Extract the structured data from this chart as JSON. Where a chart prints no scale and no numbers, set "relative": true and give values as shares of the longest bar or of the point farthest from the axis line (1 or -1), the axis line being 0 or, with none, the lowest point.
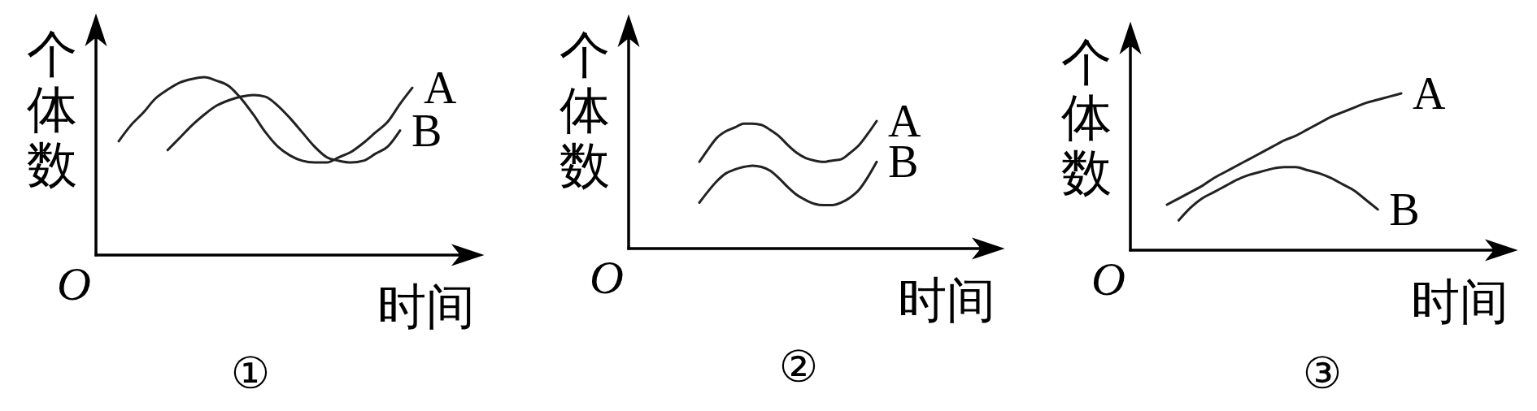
{
  "chart_data": [
    {
      "type": "line",
      "relative": true,
      "title": "①",
      "xlabel": "时间",
      "ylabel": "个体数",
      "annotations": [
        "O"
      ],
      "categories": [
        null,
        null,
        null,
        null,
        null,
        null,
        null,
        null,
        null,
        null,
        null,
        null,
        null,
        null,
        null,
        null,
        null,
        null,
        null,
        null,
        null,
        null,
        null,
        null,
        null
      ],
      "series": [
        {
          "name": "A",
          "color": "#222222",
          "values": [
            0.64,
            0.73,
            0.8,
            0.88,
            0.93,
            0.97,
            0.99,
            1.0,
            0.98,
            0.95,
            0.88,
            0.79,
            0.69,
            0.61,
            0.56,
            0.53,
            0.52,
            0.52,
            0.55,
            0.58,
            0.63,
            0.69,
            0.75,
            0.85,
            0.94
          ]
        },
        {
          "name": "B",
          "color": "#222222",
          "values": [
            null,
            null,
            null,
            null,
            0.59,
            0.66,
            0.73,
            0.79,
            0.84,
            0.87,
            0.89,
            0.9,
            0.89,
            0.84,
            0.77,
            0.69,
            0.61,
            0.55,
            0.53,
            0.52,
            0.53,
            0.57,
            0.61,
            0.7,
            null
          ]
        }
      ]
    },
    {
      "type": "line",
      "relative": true,
      "title": "②",
      "xlabel": "时间",
      "ylabel": "个体数",
      "annotations": [
        "O"
      ],
      "categories": [
        null,
        null,
        null,
        null,
        null,
        null,
        null,
        null,
        null,
        null,
        null,
        null,
        null,
        null,
        null,
        null,
        null,
        null,
        null,
        null,
        null
      ],
      "series": [
        {
          "name": "A",
          "color": "#222222",
          "values": [
            0.68,
            0.78,
            0.87,
            0.92,
            0.95,
            0.98,
            0.98,
            0.97,
            0.93,
            0.88,
            0.81,
            0.75,
            0.71,
            0.69,
            0.68,
            0.69,
            0.7,
            0.75,
            0.81,
            0.9,
            1.0
          ]
        },
        {
          "name": "B",
          "color": "#222222",
          "values": [
            0.36,
            0.45,
            0.53,
            0.59,
            0.62,
            0.64,
            0.65,
            0.64,
            0.61,
            0.55,
            0.48,
            0.42,
            0.38,
            0.35,
            0.34,
            0.34,
            0.36,
            0.4,
            0.46,
            0.56,
            0.68
          ]
        }
      ]
    },
    {
      "type": "line",
      "relative": true,
      "title": "③",
      "xlabel": "时间",
      "ylabel": "个体数",
      "annotations": [
        "O"
      ],
      "categories": [
        null,
        null,
        null,
        null,
        null,
        null,
        null,
        null,
        null,
        null,
        null,
        null,
        null,
        null,
        null,
        null,
        null,
        null,
        null,
        null,
        null
      ],
      "series": [
        {
          "name": "A",
          "color": "#222222",
          "values": [
            0.29,
            0.33,
            0.37,
            0.41,
            0.46,
            0.5,
            0.54,
            0.58,
            0.62,
            0.66,
            0.7,
            0.73,
            0.77,
            0.81,
            0.85,
            0.88,
            0.91,
            0.94,
            0.96,
            0.98,
            1.0
          ]
        },
        {
          "name": "B",
          "color": "#222222",
          "values": [
            null,
            0.19,
            0.27,
            0.33,
            0.37,
            0.41,
            0.45,
            0.48,
            0.5,
            0.52,
            0.53,
            0.53,
            0.51,
            0.49,
            0.46,
            0.42,
            0.38,
            0.32,
            0.26,
            null,
            null
          ]
        }
      ]
    }
  ]
}
